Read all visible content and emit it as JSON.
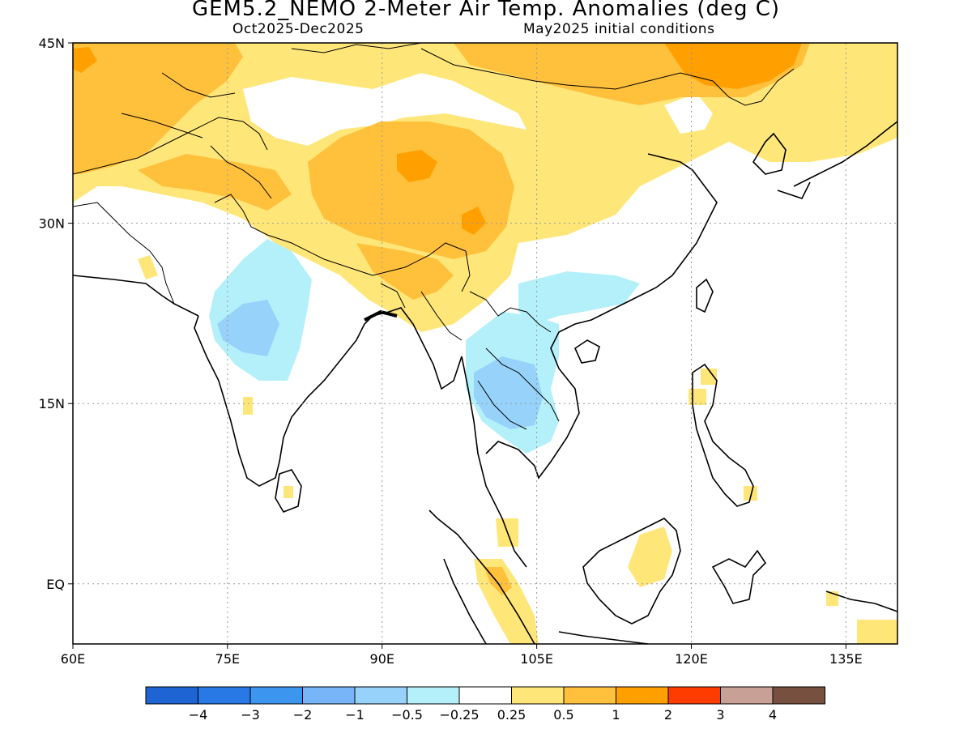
{
  "title": "GEM5.2_NEMO 2-Meter Air Temp. Anomalies (deg C)",
  "subtitle_left": "Oct2025-Dec2025",
  "subtitle_right": "May2025 initial conditions",
  "axes": {
    "lon_ticks": [
      "60E",
      "75E",
      "90E",
      "105E",
      "120E",
      "135E"
    ],
    "lat_ticks": [
      "45N",
      "30N",
      "15N",
      "EQ"
    ],
    "lon_range_deg": [
      60,
      140
    ],
    "lat_range_deg": [
      -5,
      45
    ],
    "grid": "dotted"
  },
  "colorbar": {
    "colors": [
      "#1e64d2",
      "#2878e6",
      "#3c96f0",
      "#78b4f8",
      "#96d2fa",
      "#b4f0fa",
      "#ffffff",
      "#ffe678",
      "#ffc03c",
      "#ffa000",
      "#ff3c00",
      "#c8a096",
      "#785040"
    ],
    "labels": [
      "-4",
      "-3",
      "-2",
      "-1",
      "-0.5",
      "-0.25",
      "0.25",
      "0.5",
      "1",
      "2",
      "3",
      "4"
    ]
  },
  "anomaly_regions": [
    {
      "region": "Tibetan Plateau / Western China",
      "category": "1 to 2"
    },
    {
      "region": "Mongolia / North China",
      "category": "1 to 2"
    },
    {
      "region": "Central Asia",
      "category": "0.5 to 1"
    },
    {
      "region": "Central India",
      "category": "-1 to -0.5"
    },
    {
      "region": "Thailand / Indochina",
      "category": "-1 to -0.5"
    },
    {
      "region": "South China",
      "category": "-0.5 to -0.25"
    },
    {
      "region": "Sumatra",
      "category": "0.5 to 1"
    },
    {
      "region": "Borneo",
      "category": "0.25 to 0.5"
    }
  ]
}
